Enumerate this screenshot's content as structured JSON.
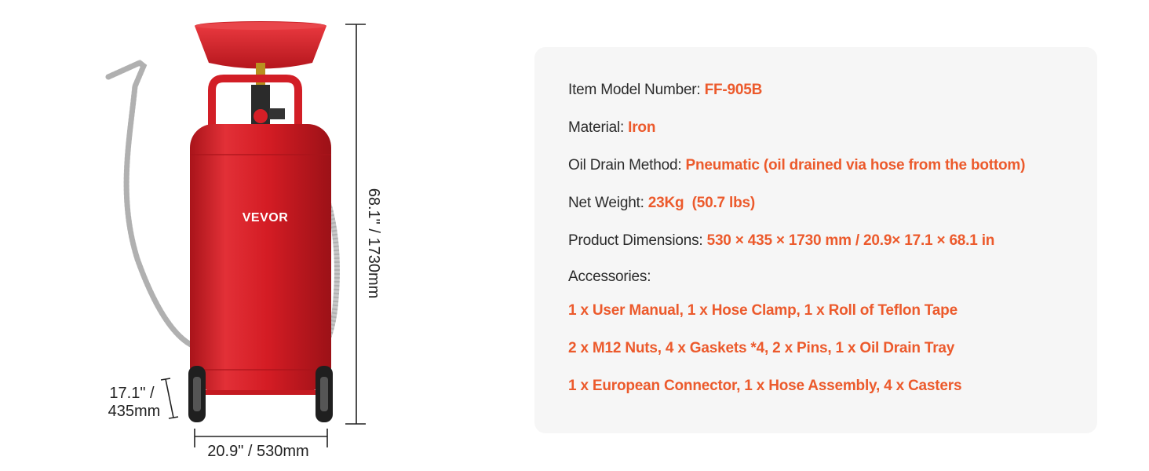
{
  "product": {
    "brand": "VEVOR",
    "dimension_labels": {
      "height": "68.1\" / 1730mm",
      "depth_line1": "17.1\" /",
      "depth_line2": "435mm",
      "width": "20.9\" / 530mm"
    }
  },
  "specs": [
    {
      "label": "Item Model Number: ",
      "value": "FF-905B"
    },
    {
      "label": "Material: ",
      "value": "Iron"
    },
    {
      "label": "Oil Drain Method: ",
      "value": "Pneumatic (oil drained via hose from the bottom)"
    },
    {
      "label": "Net Weight: ",
      "value": "23Kg  (50.7 lbs)"
    },
    {
      "label": "Product Dimensions: ",
      "value": "530 × 435 × 1730 mm / 20.9× 17.1 × 68.1 in"
    }
  ],
  "accessories": {
    "label": "Accessories:",
    "lines": [
      "1 x User Manual, 1 x Hose Clamp, 1 x Roll of Teflon Tape",
      "2 x M12 Nuts, 4 x Gaskets *4, 2 x Pins, 1 x Oil Drain Tray",
      "1 x European Connector, 1 x Hose Assembly, 4 x Casters"
    ]
  },
  "colors": {
    "accent": "#ec5a2c",
    "tank_red": "#d81f26",
    "card_bg": "#f6f6f6"
  }
}
